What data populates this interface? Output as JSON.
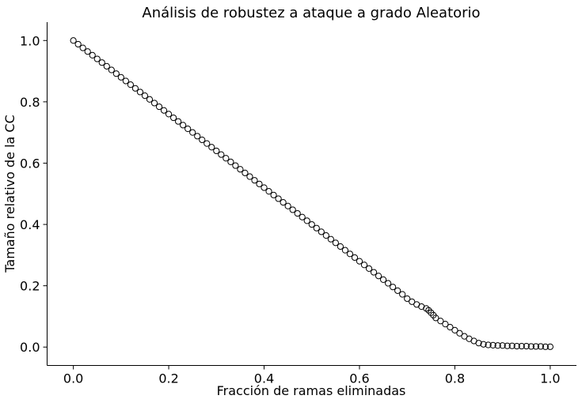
{
  "chart_data": {
    "type": "scatter",
    "title": "Análisis de robustez a ataque a grado Aleatorio",
    "xlabel": "Fracción de ramas eliminadas",
    "ylabel": "Tamaño relativo de la CC",
    "xlim": [
      -0.055,
      1.055
    ],
    "ylim": [
      -0.06,
      1.06
    ],
    "xticks": [
      0.0,
      0.2,
      0.4,
      0.6,
      0.8,
      1.0
    ],
    "yticks": [
      0.0,
      0.2,
      0.4,
      0.6,
      0.8,
      1.0
    ],
    "xtick_labels": [
      "0.0",
      "0.2",
      "0.4",
      "0.6",
      "0.8",
      "1.0"
    ],
    "ytick_labels": [
      "0.0",
      "0.2",
      "0.4",
      "0.6",
      "0.8",
      "1.0"
    ],
    "grid": false,
    "marker": "open-circle",
    "marker_color": "#000000",
    "x": [
      0.0,
      0.01,
      0.02,
      0.03,
      0.04,
      0.05,
      0.06,
      0.07,
      0.08,
      0.09,
      0.1,
      0.11,
      0.12,
      0.13,
      0.14,
      0.15,
      0.16,
      0.17,
      0.18,
      0.19,
      0.2,
      0.21,
      0.22,
      0.23,
      0.24,
      0.25,
      0.26,
      0.27,
      0.28,
      0.29,
      0.3,
      0.31,
      0.32,
      0.33,
      0.34,
      0.35,
      0.36,
      0.37,
      0.38,
      0.39,
      0.4,
      0.41,
      0.42,
      0.43,
      0.44,
      0.45,
      0.46,
      0.47,
      0.48,
      0.49,
      0.5,
      0.51,
      0.52,
      0.53,
      0.54,
      0.55,
      0.56,
      0.57,
      0.58,
      0.59,
      0.6,
      0.61,
      0.62,
      0.63,
      0.64,
      0.65,
      0.66,
      0.67,
      0.68,
      0.69,
      0.7,
      0.71,
      0.72,
      0.73,
      0.74,
      0.745,
      0.75,
      0.755,
      0.76,
      0.77,
      0.78,
      0.79,
      0.8,
      0.81,
      0.82,
      0.83,
      0.84,
      0.85,
      0.86,
      0.87,
      0.88,
      0.89,
      0.9,
      0.91,
      0.92,
      0.93,
      0.94,
      0.95,
      0.96,
      0.97,
      0.98,
      0.99,
      1.0
    ],
    "y": [
      1.0,
      0.988,
      0.976,
      0.964,
      0.952,
      0.94,
      0.928,
      0.916,
      0.904,
      0.892,
      0.88,
      0.868,
      0.856,
      0.844,
      0.832,
      0.82,
      0.808,
      0.796,
      0.784,
      0.772,
      0.76,
      0.748,
      0.736,
      0.724,
      0.712,
      0.7,
      0.688,
      0.676,
      0.664,
      0.652,
      0.64,
      0.628,
      0.616,
      0.604,
      0.592,
      0.58,
      0.568,
      0.556,
      0.544,
      0.532,
      0.52,
      0.508,
      0.496,
      0.484,
      0.472,
      0.46,
      0.448,
      0.436,
      0.424,
      0.412,
      0.4,
      0.388,
      0.376,
      0.364,
      0.352,
      0.34,
      0.328,
      0.316,
      0.304,
      0.292,
      0.28,
      0.268,
      0.256,
      0.244,
      0.232,
      0.22,
      0.208,
      0.196,
      0.184,
      0.172,
      0.158,
      0.148,
      0.139,
      0.132,
      0.126,
      0.12,
      0.112,
      0.104,
      0.095,
      0.085,
      0.075,
      0.065,
      0.055,
      0.045,
      0.035,
      0.027,
      0.02,
      0.013,
      0.009,
      0.007,
      0.006,
      0.005,
      0.005,
      0.004,
      0.004,
      0.003,
      0.003,
      0.003,
      0.002,
      0.002,
      0.002,
      0.001,
      0.001
    ]
  }
}
